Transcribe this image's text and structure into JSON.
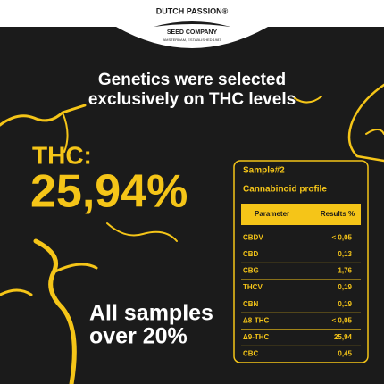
{
  "logo": {
    "brand": "DUTCH PASSION®",
    "company": "SEED COMPANY",
    "tagline": "AMSTERDAM, ESTABLISHED 1987"
  },
  "headline": {
    "lines": [
      "Genetics were selected",
      "exclusively on THC levels"
    ]
  },
  "thc": {
    "label": "THC:",
    "value": "25,94%"
  },
  "footer": {
    "lines": [
      "All samples",
      "over 20%"
    ]
  },
  "card": {
    "sample": "Sample#2",
    "subtitle": "Cannabinoid profile",
    "table": {
      "header": [
        "Parameter",
        "Results %"
      ],
      "rows": [
        [
          "CBDV",
          "< 0,05"
        ],
        [
          "CBD",
          "0,13"
        ],
        [
          "CBG",
          "1,76"
        ],
        [
          "THCV",
          "0,19"
        ],
        [
          "CBN",
          "0,19"
        ],
        [
          "Δ8-THC",
          "< 0,05"
        ],
        [
          "Δ9-THC",
          "25,94"
        ],
        [
          "CBC",
          "0,45"
        ]
      ]
    }
  }
}
